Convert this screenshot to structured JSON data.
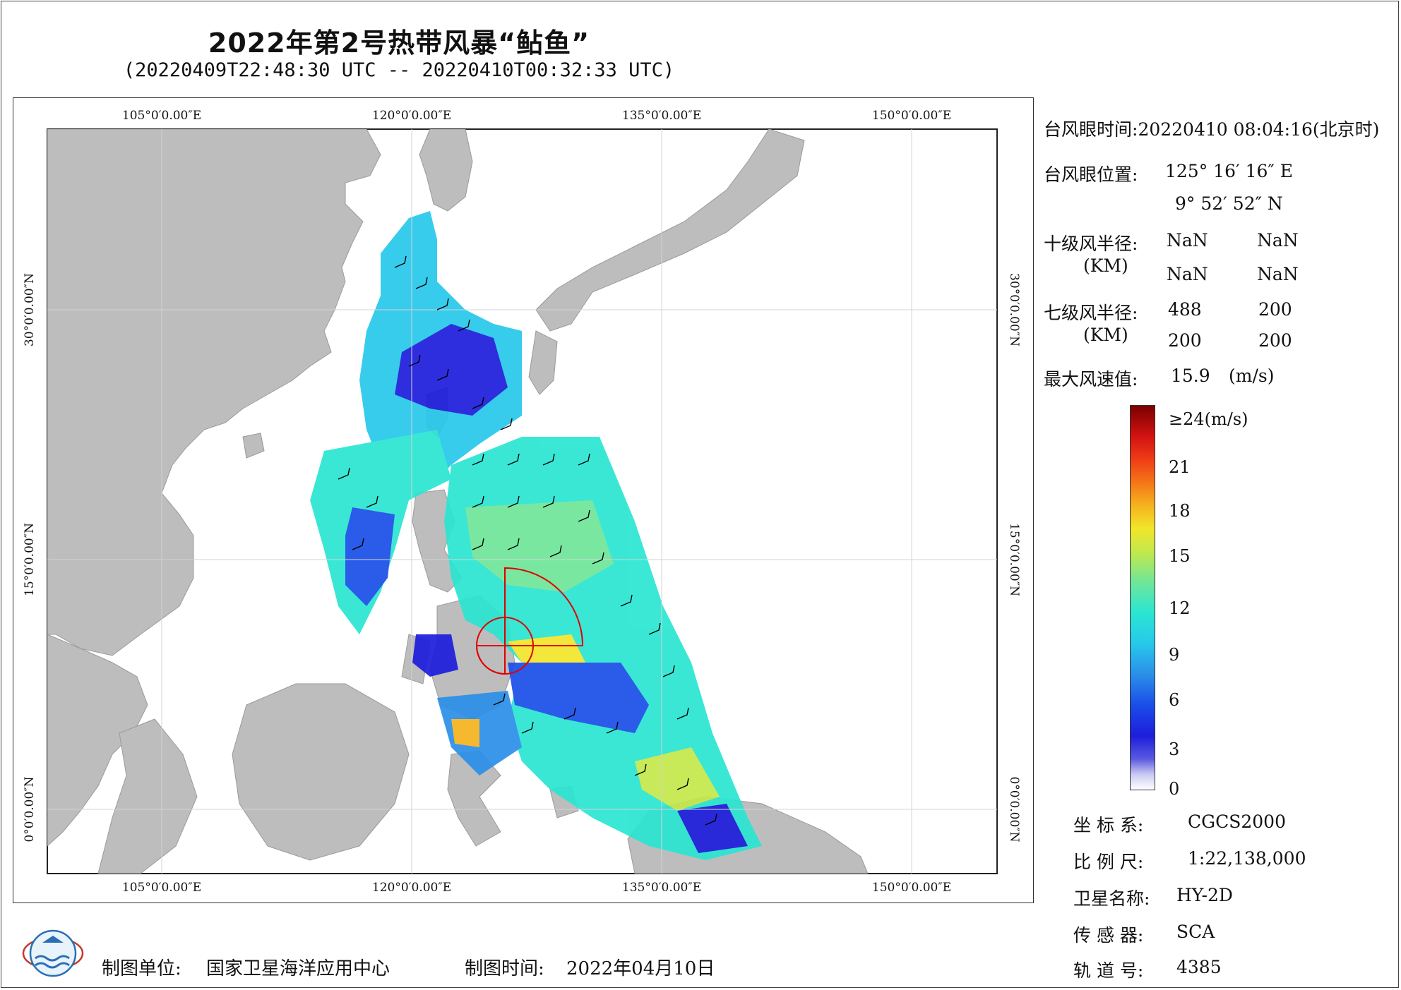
{
  "title": "2022年第2号热带风暴“鲇鱼”",
  "subtitle": "(20220409T22:48:30 UTC -- 20220410T00:32:33 UTC)",
  "map": {
    "lon_labels": [
      "105°0′0.00″E",
      "120°0′0.00″E",
      "135°0′0.00″E",
      "150°0′0.00″E"
    ],
    "lat_labels": [
      "30°0′0.00″N",
      "15°0′0.00″N",
      "0°0′0.00″N"
    ],
    "colors": {
      "land": "#bdbdbd",
      "sea": "#ffffff",
      "typhoon_marker": "#e00000",
      "grid": "#d9d9d9",
      "barb": "#000000"
    }
  },
  "info": {
    "eye_time_label": "台风眼时间:",
    "eye_time_value": "20220410 08:04:16(北京时)",
    "eye_pos_label": "台风眼位置:",
    "eye_lon": "125° 16′ 16″ E",
    "eye_lat": "9° 52′ 52″ N",
    "r10_label": "十级风半径:",
    "r10_unit": "(KM)",
    "r10_values": [
      "NaN",
      "NaN",
      "NaN",
      "NaN"
    ],
    "r7_label": "七级风半径:",
    "r7_unit": "(KM)",
    "r7_values": [
      "488",
      "200",
      "200",
      "200"
    ],
    "max_wind_label": "最大风速值:",
    "max_wind_value": "15.9",
    "max_wind_unit": "(m/s)"
  },
  "colorbar": {
    "labels": [
      "≥24(m/s)",
      "21",
      "18",
      "15",
      "12",
      "9",
      "6",
      "3",
      "0"
    ]
  },
  "meta": {
    "coord_label": "坐 标 系:",
    "coord_value": "CGCS2000",
    "scale_label": "比 例 尺:",
    "scale_value": "1:22,138,000",
    "sat_label": "卫星名称:",
    "sat_value": "HY-2D",
    "sensor_label": "传 感 器:",
    "sensor_value": "SCA",
    "orbit_label": "轨 道 号:",
    "orbit_value": "4385"
  },
  "footer": {
    "maker_label": "制图单位:",
    "maker_value": "国家卫星海洋应用中心",
    "date_label": "制图时间:",
    "date_value": "2022年04月10日"
  },
  "logo": {
    "icon": "nsoas-logo-icon"
  }
}
